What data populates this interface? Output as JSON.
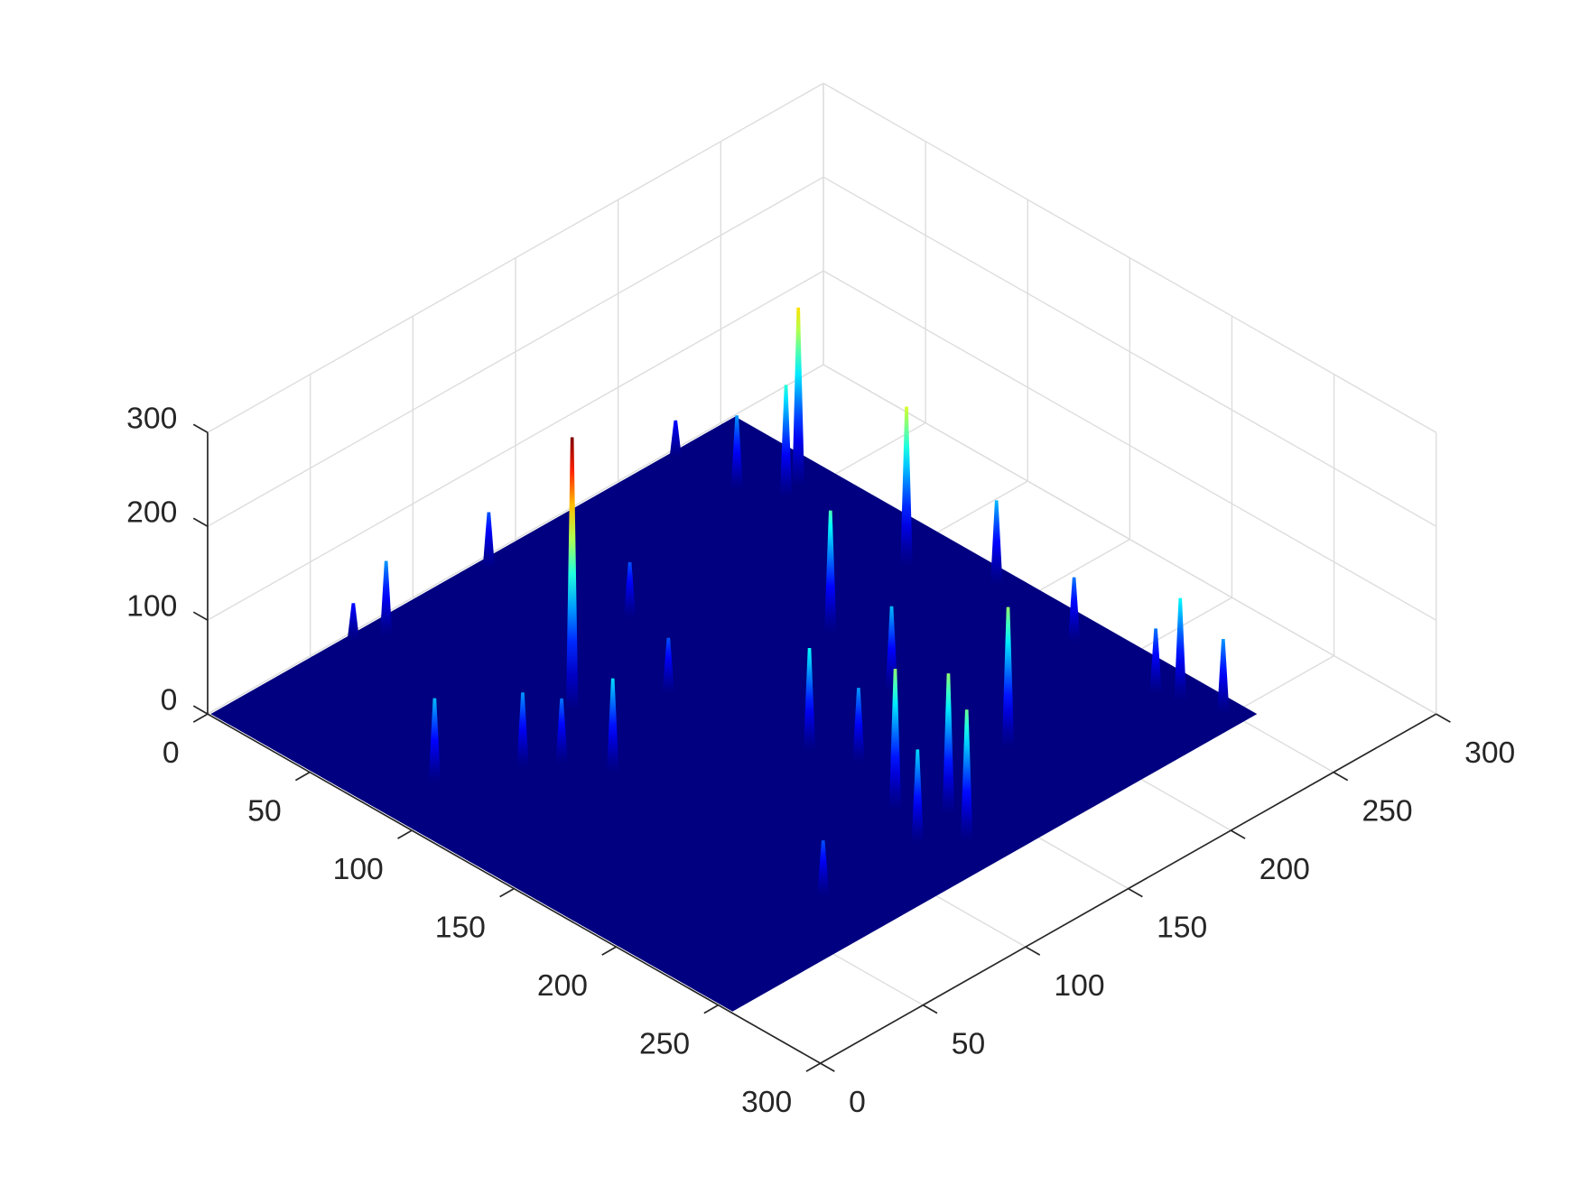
{
  "chart_data": {
    "type": "surface",
    "colormap": "jet",
    "grid": true,
    "xlim": [
      0,
      300
    ],
    "ylim": [
      0,
      300
    ],
    "zlim": [
      0,
      300
    ],
    "xticks": [
      0,
      50,
      100,
      150,
      200,
      250,
      300
    ],
    "yticks": [
      0,
      50,
      100,
      150,
      200,
      250,
      300
    ],
    "zticks": [
      0,
      100,
      200,
      300
    ],
    "data_extent": [
      1,
      256
    ],
    "series": [
      {
        "x": [
          91,
          242,
          234,
          181,
          131,
          138,
          127,
          131,
          74,
          77,
          131,
          187,
          243,
          248,
          234,
          248,
          224,
          26,
          54,
          65,
          144,
          242,
          138,
          72,
          118,
          225,
          121,
          67,
          240,
          177
        ],
        "y": [
          87,
          46,
          107,
          210,
          240,
          224,
          209,
          163,
          124,
          10,
          6,
          117,
          232,
          248,
          48,
          137,
          4,
          85,
          100,
          108,
          62,
          181,
          180,
          229,
          229,
          33,
          104,
          4,
          223,
          157
        ],
        "z": [
          290,
          190,
          170,
          150,
          140,
          150,
          150,
          110,
          100,
          80,
          60,
          130,
          110,
          80,
          120,
          90,
          40,
          90,
          80,
          70,
          60,
          70,
          80,
          60,
          100,
          80,
          60,
          40,
          70,
          90
        ]
      }
    ]
  }
}
